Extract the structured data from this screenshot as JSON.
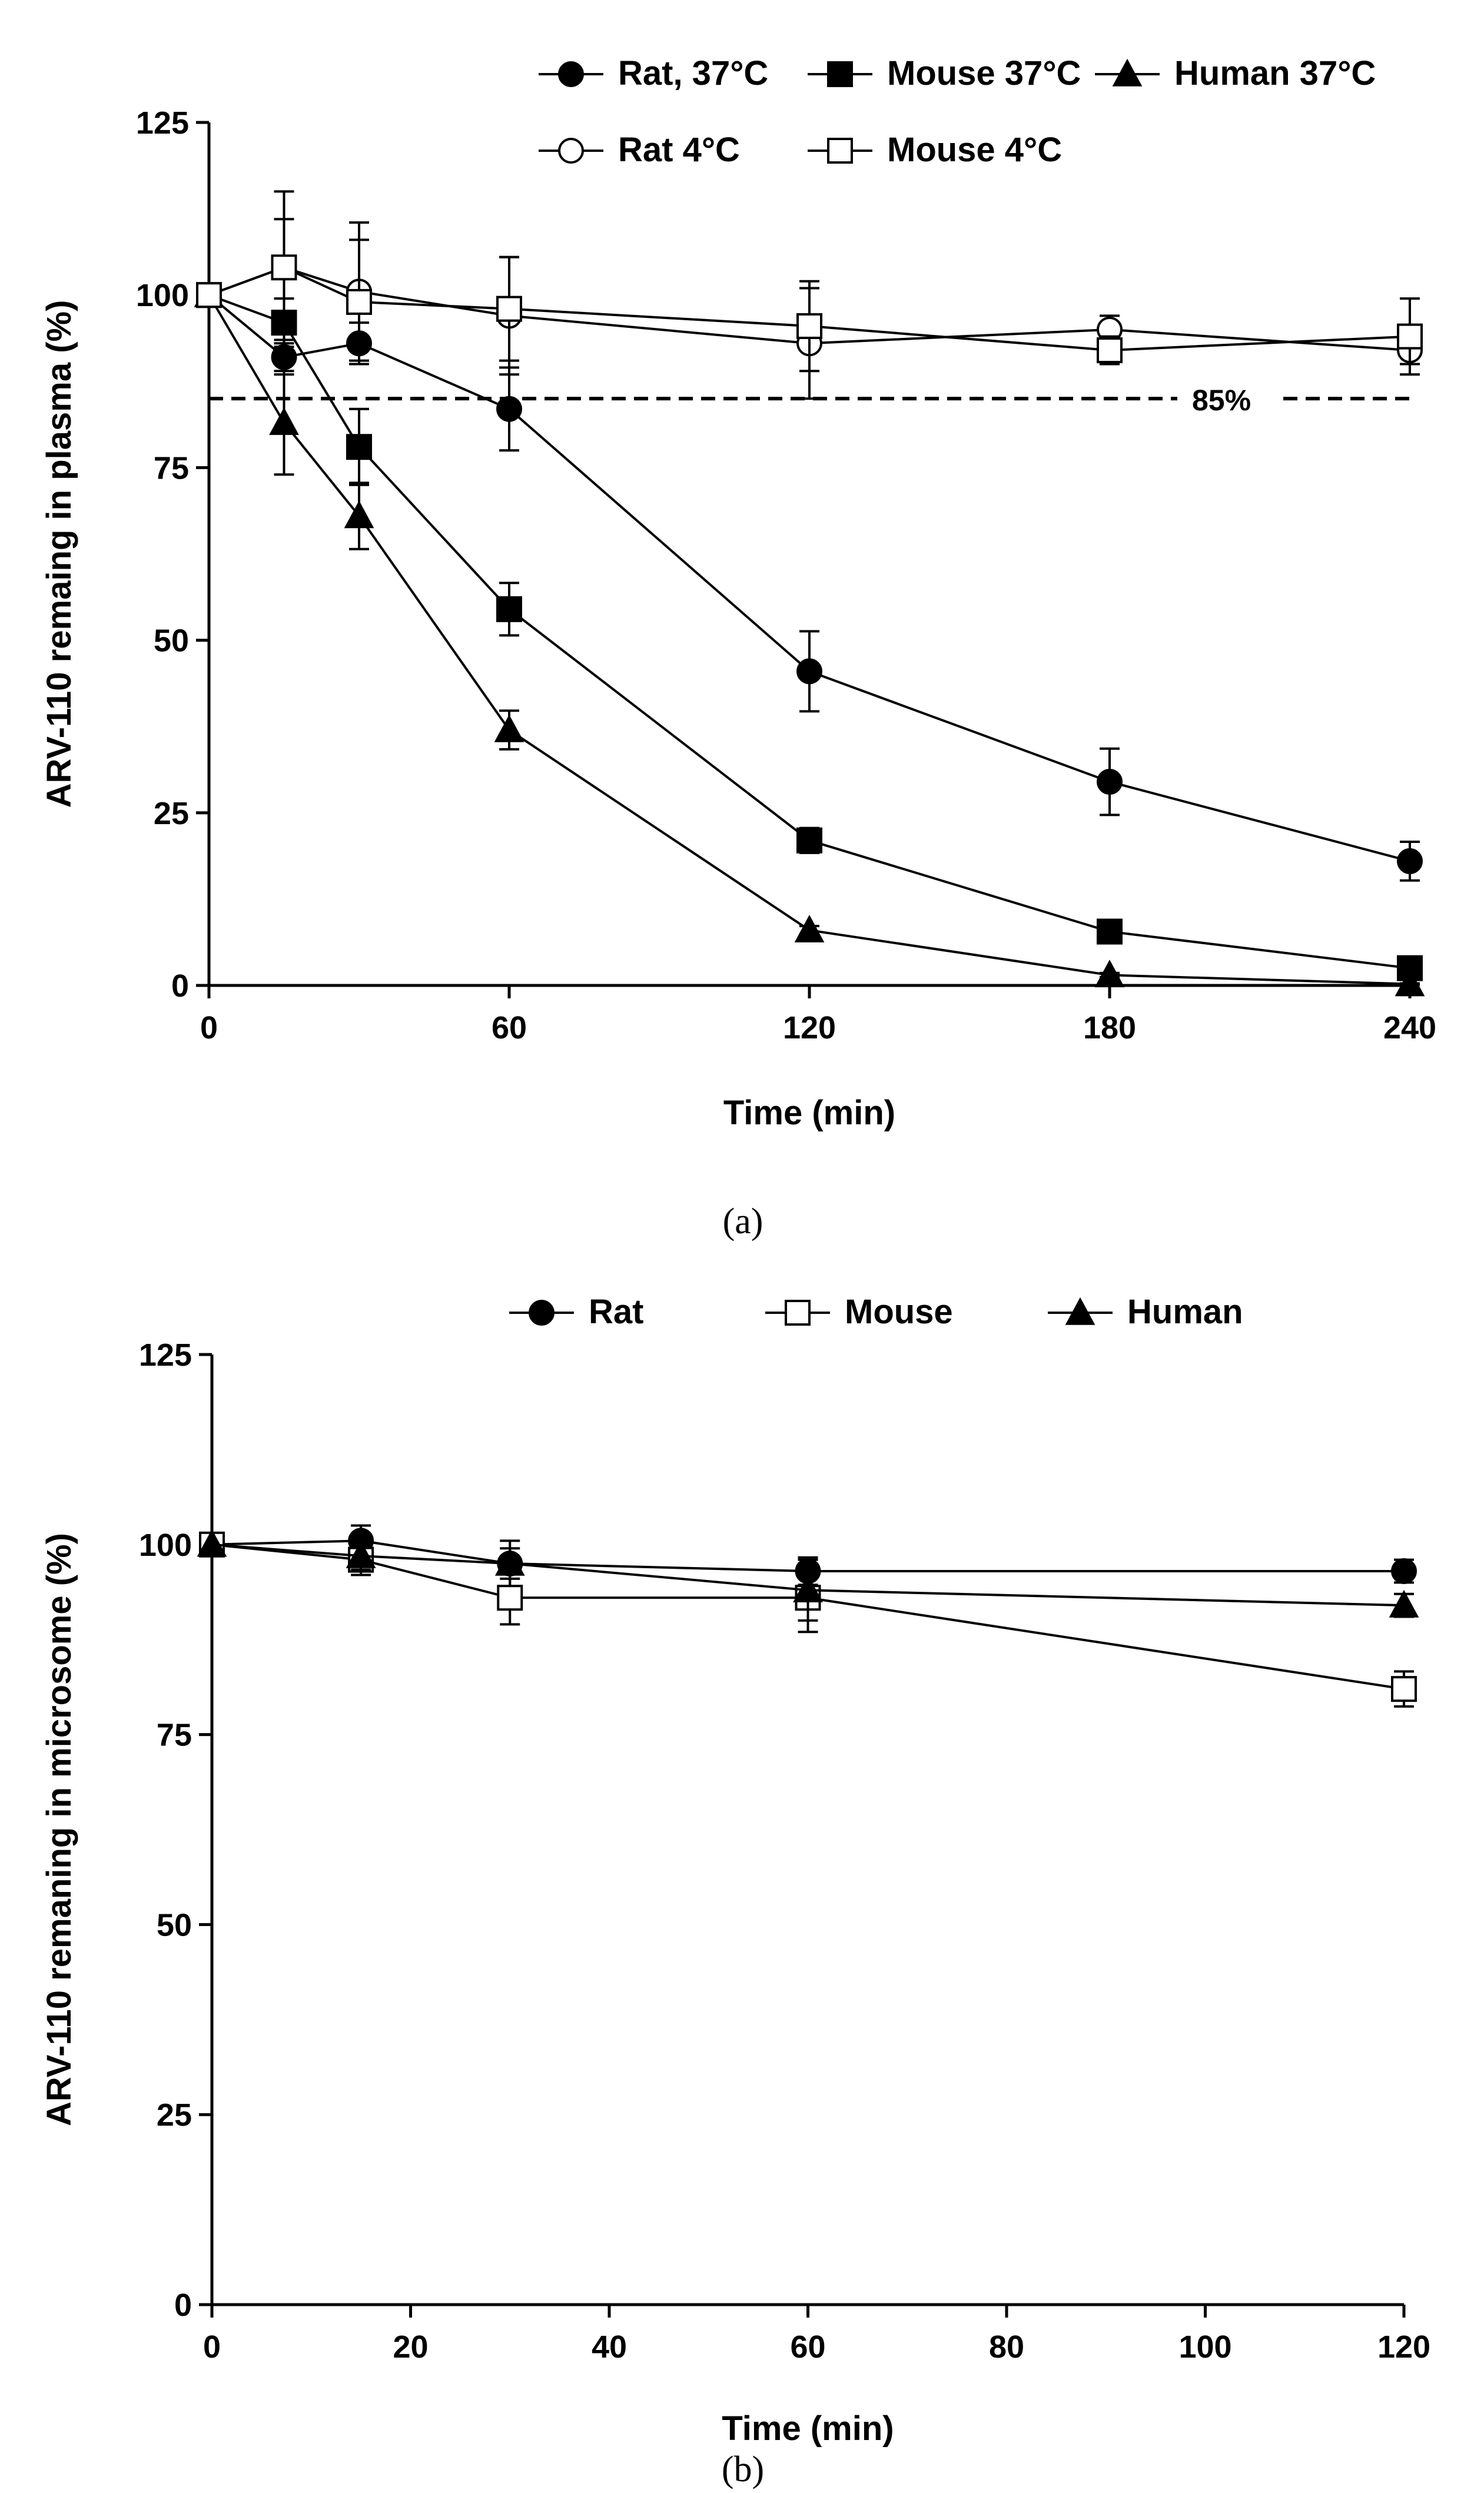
{
  "chart_data": [
    {
      "type": "line",
      "panel_label": "(a)",
      "xlabel": "Time (min)",
      "ylabel": "ARV-110 remaing in plasma (%)",
      "xlim": [
        0,
        240
      ],
      "ylim": [
        0,
        125
      ],
      "xticks": [
        0,
        60,
        120,
        180,
        240
      ],
      "yticks": [
        0,
        25,
        50,
        75,
        100,
        125
      ],
      "legend_position": "top",
      "reference_line": {
        "y": 85,
        "label": "85%",
        "style": "dashed"
      },
      "series": [
        {
          "name": "Rat, 37°C",
          "marker": "circle-filled",
          "x": [
            0,
            15,
            30,
            60,
            120,
            180,
            240
          ],
          "y": [
            100,
            91,
            93,
            83.5,
            45.5,
            29.5,
            18
          ],
          "err": [
            0,
            2.5,
            3,
            6,
            5.8,
            4.8,
            2.8
          ]
        },
        {
          "name": "Mouse 37°C",
          "marker": "square-filled",
          "x": [
            0,
            15,
            30,
            60,
            120,
            180,
            240
          ],
          "y": [
            100,
            96,
            78,
            54.5,
            21,
            7.8,
            2.5
          ],
          "err": [
            0,
            3.5,
            5.5,
            3.8,
            1.8,
            0.6,
            0.3
          ]
        },
        {
          "name": "Human 37°C",
          "marker": "triangle-filled",
          "x": [
            0,
            15,
            30,
            60,
            120,
            180,
            240
          ],
          "y": [
            100,
            81.5,
            68,
            37,
            8,
            1.5,
            0.2
          ],
          "err": [
            0,
            7.5,
            4.8,
            2.8,
            0.6,
            0.3,
            0.1
          ]
        },
        {
          "name": "Rat 4°C",
          "marker": "circle-open",
          "x": [
            0,
            15,
            30,
            60,
            120,
            180,
            240
          ],
          "y": [
            100,
            104,
            100.5,
            97,
            93,
            95,
            92
          ],
          "err": [
            0,
            7,
            10,
            8.5,
            8,
            2,
            2
          ]
        },
        {
          "name": "Mouse 4°C",
          "marker": "square-open",
          "x": [
            0,
            15,
            30,
            60,
            120,
            180,
            240
          ],
          "y": [
            100,
            104,
            99,
            98,
            95.5,
            92,
            94
          ],
          "err": [
            0,
            11,
            9,
            7.5,
            6.5,
            2,
            5.5
          ]
        }
      ]
    },
    {
      "type": "line",
      "panel_label": "(b)",
      "xlabel": "Time (min)",
      "ylabel": "ARV-110 remaning in microsome (%)",
      "xlim": [
        0,
        120
      ],
      "ylim": [
        0,
        125
      ],
      "xticks": [
        0,
        20,
        40,
        60,
        80,
        100,
        120
      ],
      "yticks": [
        0,
        25,
        50,
        75,
        100,
        125
      ],
      "legend_position": "top",
      "series": [
        {
          "name": "Rat",
          "marker": "circle-filled",
          "x": [
            0,
            15,
            30,
            60,
            120
          ],
          "y": [
            100,
            100.5,
            97.5,
            96.5,
            96.5
          ],
          "err": [
            0,
            2,
            3,
            1.8,
            1.5
          ]
        },
        {
          "name": "Mouse",
          "marker": "square-open",
          "x": [
            0,
            15,
            30,
            60,
            120
          ],
          "y": [
            100,
            98,
            93,
            93,
            81
          ],
          "err": [
            0,
            2,
            3.5,
            4.5,
            2.3
          ]
        },
        {
          "name": "Human",
          "marker": "triangle-filled",
          "x": [
            0,
            15,
            30,
            60,
            120
          ],
          "y": [
            100,
            98.5,
            97.5,
            94,
            92
          ],
          "err": [
            0,
            1.8,
            2,
            4,
            1.5
          ]
        }
      ]
    }
  ]
}
